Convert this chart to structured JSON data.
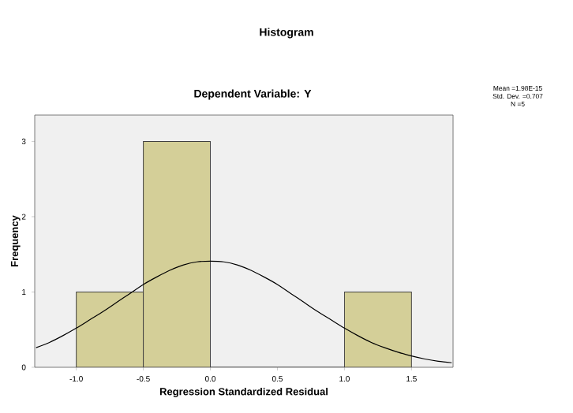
{
  "chart_data": {
    "type": "histogram",
    "title": "Histogram",
    "subtitle": "Dependent Variable: Y",
    "xlabel": "Regression Standardized Residual",
    "ylabel": "Frequency",
    "bins": [
      -1.0,
      -0.5,
      0.0,
      0.5,
      1.0,
      1.5
    ],
    "values": [
      1,
      3,
      0,
      0,
      1
    ],
    "color": "#d4cf98",
    "series": [
      {
        "type": "line",
        "color": "#000000",
        "x": [
          -1.3,
          -1.2,
          -1.1,
          -1.0,
          -0.9,
          -0.8,
          -0.7,
          -0.6,
          -0.5,
          -0.4,
          -0.3,
          -0.2,
          -0.1,
          0.0,
          0.1,
          0.2,
          0.3,
          0.4,
          0.5,
          0.6,
          0.7,
          0.8,
          0.9,
          1.0,
          1.1,
          1.2,
          1.3,
          1.4,
          1.5,
          1.6,
          1.7,
          1.8
        ],
        "values": [
          0.26,
          0.33,
          0.42,
          0.52,
          0.63,
          0.74,
          0.86,
          0.98,
          1.1,
          1.2,
          1.29,
          1.36,
          1.4,
          1.41,
          1.4,
          1.36,
          1.29,
          1.2,
          1.1,
          0.98,
          0.86,
          0.74,
          0.63,
          0.52,
          0.42,
          0.33,
          0.26,
          0.2,
          0.15,
          0.11,
          0.08,
          0.06
        ]
      }
    ],
    "xlim": [
      -1.31,
      1.81
    ],
    "ylim": [
      0,
      3.35
    ],
    "xticks": [
      {
        "value": -1.0,
        "label": "-1.0"
      },
      {
        "value": -0.5,
        "label": "-0.5"
      },
      {
        "value": 0.0,
        "label": "0.0"
      },
      {
        "value": 0.5,
        "label": "0.5"
      },
      {
        "value": 1.0,
        "label": "1.0"
      },
      {
        "value": 1.5,
        "label": "1.5"
      }
    ],
    "yticks": [
      0,
      1,
      2,
      3
    ],
    "annotations": [
      "Mean =1.98E-15",
      "Std. Dev. =0.707",
      "N =5"
    ]
  }
}
